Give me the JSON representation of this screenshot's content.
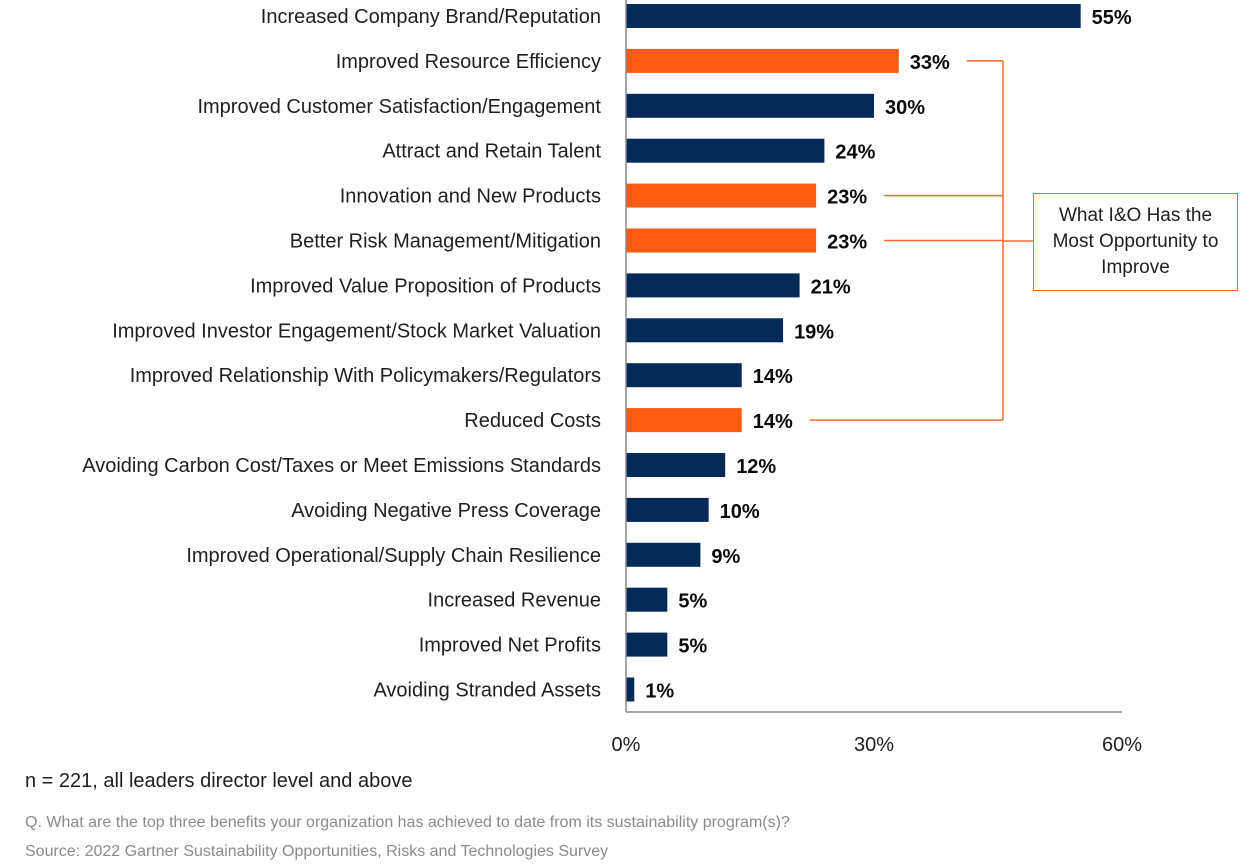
{
  "chart_data": {
    "type": "bar",
    "orientation": "horizontal",
    "categories": [
      "Increased Company Brand/Reputation",
      "Improved Resource Efficiency",
      "Improved Customer Satisfaction/Engagement",
      "Attract and Retain Talent",
      "Innovation and New Products",
      "Better Risk Management/Mitigation",
      "Improved Value Proposition of Products",
      "Improved Investor Engagement/Stock Market Valuation",
      "Improved Relationship With Policymakers/Regulators",
      "Reduced Costs",
      "Avoiding Carbon Cost/Taxes or Meet Emissions Standards",
      "Avoiding Negative Press Coverage",
      "Improved Operational/Supply Chain Resilience",
      "Increased Revenue",
      "Improved Net Profits",
      "Avoiding Stranded Assets"
    ],
    "values": [
      55,
      33,
      30,
      24,
      23,
      23,
      21,
      19,
      14,
      14,
      12,
      10,
      9,
      5,
      5,
      1
    ],
    "value_labels": [
      "55%",
      "33%",
      "30%",
      "24%",
      "23%",
      "23%",
      "21%",
      "19%",
      "14%",
      "14%",
      "12%",
      "10%",
      "9%",
      "5%",
      "5%",
      "1%"
    ],
    "highlighted": [
      false,
      true,
      false,
      false,
      true,
      true,
      false,
      false,
      false,
      true,
      false,
      false,
      false,
      false,
      false,
      false
    ],
    "xlim": [
      0,
      60
    ],
    "xticks": [
      "0%",
      "30%",
      "60%"
    ],
    "xtick_values": [
      0,
      30,
      60
    ],
    "grid": false,
    "colors": {
      "default": "#062a57",
      "highlight": "#fd5a12",
      "callout": "#f26b2a"
    },
    "annotation": "What I&O Has the Most Opportunity to Improve"
  },
  "notes": {
    "sample": "n = 221, all leaders director level and above",
    "question": "Q. What are the top three benefits your organization has achieved to date from its sustainability program(s)?",
    "source": "Source: 2022 Gartner Sustainability Opportunities, Risks and Technologies Survey"
  }
}
